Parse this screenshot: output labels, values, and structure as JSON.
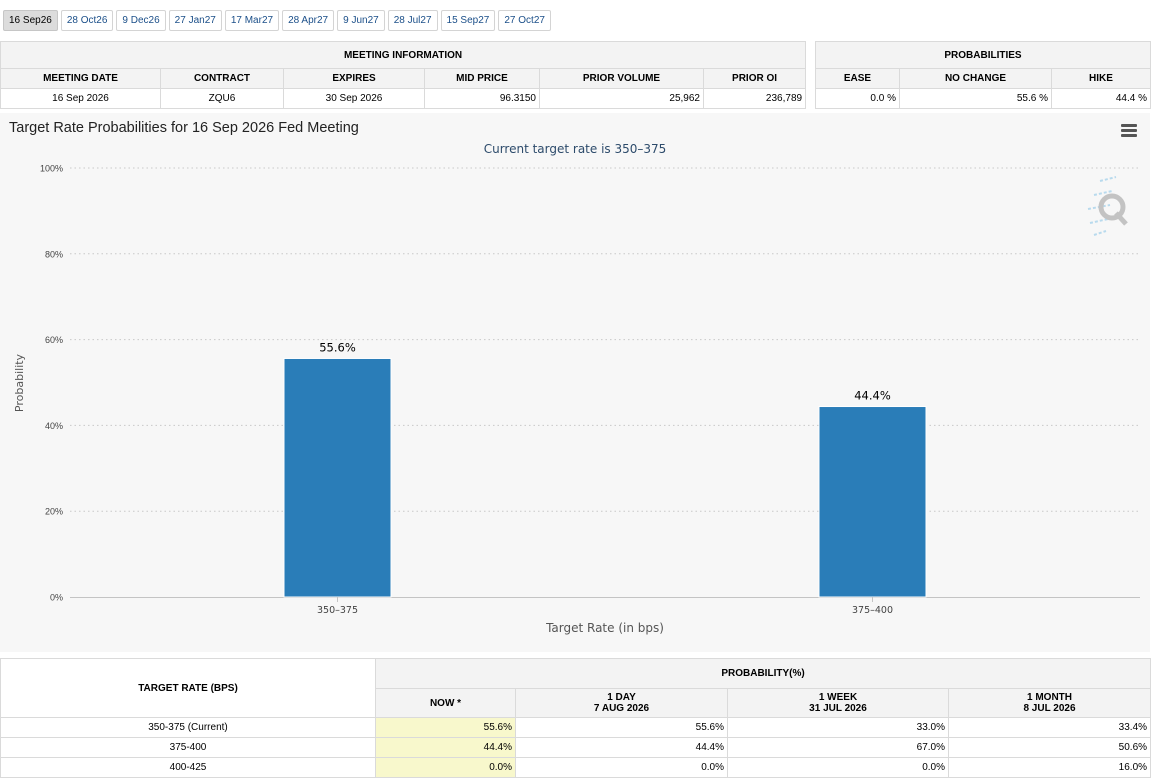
{
  "tabs": [
    "16 Sep26",
    "28 Oct26",
    "9 Dec26",
    "27 Jan27",
    "17 Mar27",
    "28 Apr27",
    "9 Jun27",
    "28 Jul27",
    "15 Sep27",
    "27 Oct27"
  ],
  "active_tab": 0,
  "meeting_info": {
    "title": "MEETING INFORMATION",
    "headers": [
      "MEETING DATE",
      "CONTRACT",
      "EXPIRES",
      "MID PRICE",
      "PRIOR VOLUME",
      "PRIOR OI"
    ],
    "row": [
      "16 Sep 2026",
      "ZQU6",
      "30 Sep 2026",
      "96.3150",
      "25,962",
      "236,789"
    ]
  },
  "probabilities": {
    "title": "PROBABILITIES",
    "headers": [
      "EASE",
      "NO CHANGE",
      "HIKE"
    ],
    "row": [
      "0.0 %",
      "55.6 %",
      "44.4 %"
    ]
  },
  "chart": {
    "menu_icon": "hamburger-menu-icon",
    "watermark_icon": "q-logo-icon",
    "bar_color": "#2a7db8"
  },
  "chart_data": {
    "type": "bar",
    "title": "Target Rate Probabilities for 16 Sep 2026 Fed Meeting",
    "subtitle": "Current target rate is 350–375",
    "xlabel": "Target Rate (in bps)",
    "ylabel": "Probability",
    "categories": [
      "350–375",
      "375–400"
    ],
    "values": [
      55.6,
      44.4
    ],
    "data_labels": [
      "55.6%",
      "44.4%"
    ],
    "ylim": [
      0,
      100
    ],
    "yticks": [
      0,
      20,
      40,
      60,
      80,
      100
    ],
    "ytick_labels": [
      "0%",
      "20%",
      "40%",
      "60%",
      "80%",
      "100%"
    ],
    "grid": true
  },
  "bottom_table": {
    "col1_header": "TARGET RATE (BPS)",
    "group_header": "PROBABILITY(%)",
    "sub_headers": [
      {
        "line1": "NOW *",
        "line2": ""
      },
      {
        "line1": "1 DAY",
        "line2": "7 AUG 2026"
      },
      {
        "line1": "1 WEEK",
        "line2": "31 JUL 2026"
      },
      {
        "line1": "1 MONTH",
        "line2": "8 JUL 2026"
      }
    ],
    "rows": [
      {
        "rate": "350-375 (Current)",
        "values": [
          "55.6%",
          "55.6%",
          "33.0%",
          "33.4%"
        ]
      },
      {
        "rate": "375-400",
        "values": [
          "44.4%",
          "44.4%",
          "67.0%",
          "50.6%"
        ]
      },
      {
        "rate": "400-425",
        "values": [
          "0.0%",
          "0.0%",
          "0.0%",
          "16.0%"
        ]
      }
    ]
  }
}
